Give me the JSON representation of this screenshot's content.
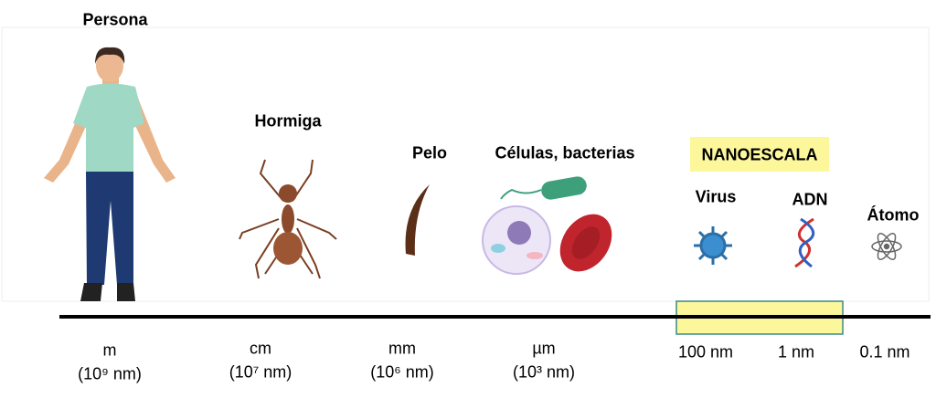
{
  "objects": [
    {
      "label": "Persona"
    },
    {
      "label": "Hormiga"
    },
    {
      "label": "Pelo"
    },
    {
      "label": "Células, bacterias"
    },
    {
      "label": "Virus"
    },
    {
      "label": "ADN"
    },
    {
      "label": "Átomo"
    }
  ],
  "nanoscale_label": "NANOESCALA",
  "scale": [
    {
      "unit": "m",
      "in_nm": "(10⁹ nm)"
    },
    {
      "unit": "cm",
      "in_nm": "(10⁷ nm)"
    },
    {
      "unit": "mm",
      "in_nm": "(10⁶ nm)"
    },
    {
      "unit": "µm",
      "in_nm": "(10³ nm)"
    },
    {
      "unit": "100 nm"
    },
    {
      "unit": "1 nm"
    },
    {
      "unit": "0.1 nm"
    }
  ]
}
